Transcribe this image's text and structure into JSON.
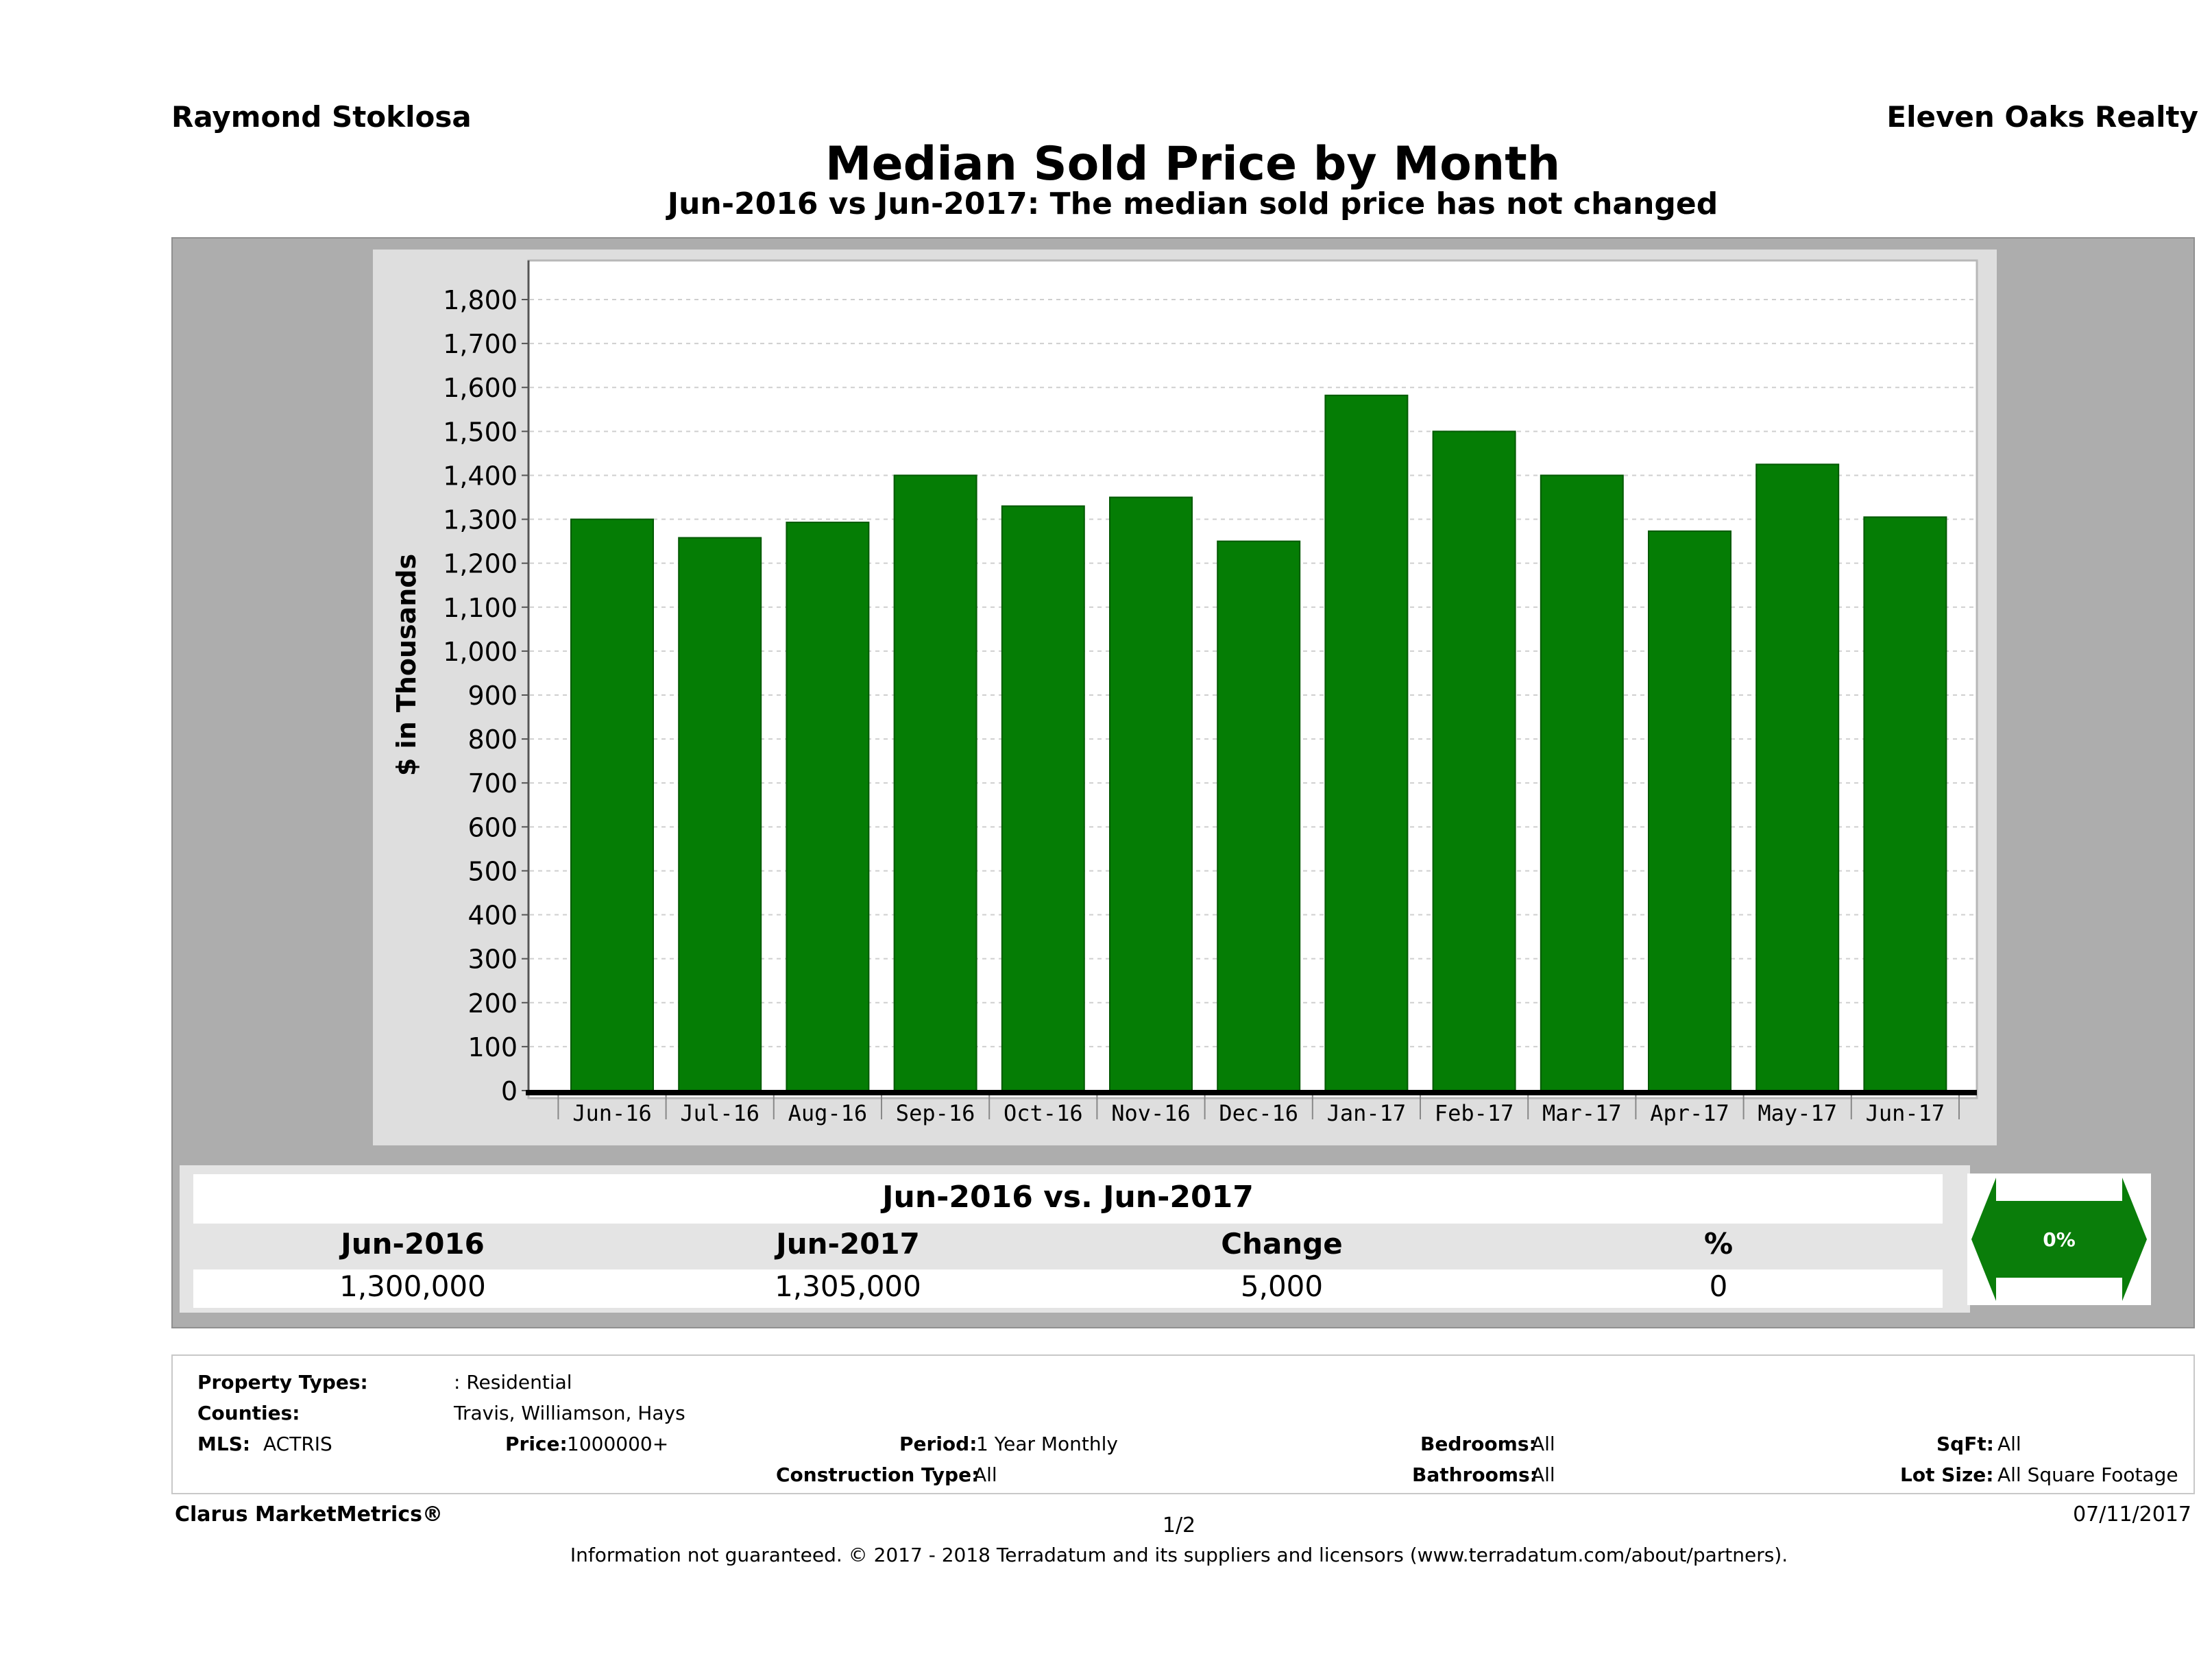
{
  "header": {
    "agent": "Raymond Stoklosa",
    "brokerage": "Eleven Oaks Realty",
    "title": "Median Sold Price by Month",
    "subtitle": "Jun-2016 vs Jun-2017: The median sold price has not changed"
  },
  "chart_data": {
    "type": "bar",
    "ylabel": "$ in Thousands",
    "xlabel": "",
    "ylim": [
      0,
      1800
    ],
    "yticks": [
      0,
      100,
      200,
      300,
      400,
      500,
      600,
      700,
      800,
      900,
      1000,
      1100,
      1200,
      1300,
      1400,
      1500,
      1600,
      1700,
      1800
    ],
    "ytick_labels": [
      "0",
      "100",
      "200",
      "300",
      "400",
      "500",
      "600",
      "700",
      "800",
      "900",
      "1,000",
      "1,100",
      "1,200",
      "1,300",
      "1,400",
      "1,500",
      "1,600",
      "1,700",
      "1,800"
    ],
    "categories": [
      "Jun-16",
      "Jul-16",
      "Aug-16",
      "Sep-16",
      "Oct-16",
      "Nov-16",
      "Dec-16",
      "Jan-17",
      "Feb-17",
      "Mar-17",
      "Apr-17",
      "May-17",
      "Jun-17"
    ],
    "values": [
      1300,
      1258,
      1293,
      1400,
      1330,
      1350,
      1250,
      1582,
      1500,
      1400,
      1273,
      1425,
      1305
    ],
    "grid": true,
    "bar_color": "#057d05"
  },
  "summary": {
    "heading": "Jun-2016 vs. Jun-2017",
    "columns": [
      "Jun-2016",
      "Jun-2017",
      "Change",
      "%"
    ],
    "values": [
      "1,300,000",
      "1,305,000",
      "5,000",
      "0"
    ],
    "indicator": "0%",
    "indicator_color": "#0a7d0a"
  },
  "criteria": {
    "property_types_label": "Property Types:",
    "property_types": ": Residential",
    "counties_label": "Counties:",
    "counties": "Travis, Williamson, Hays",
    "mls_label": "MLS:",
    "mls": "ACTRIS",
    "price_label": "Price:",
    "price": "1000000+",
    "period_label": "Period:",
    "period": "1 Year Monthly",
    "construction_label": "Construction Type:",
    "construction": "All",
    "bedrooms_label": "Bedrooms:",
    "bedrooms": "All",
    "bathrooms_label": "Bathrooms:",
    "bathrooms": "All",
    "sqft_label": "SqFt:",
    "sqft": "All",
    "lot_label": "Lot Size:",
    "lot": "All Square Footage"
  },
  "footer": {
    "brand": "Clarus MarketMetrics®",
    "page": "1/2",
    "date": "07/11/2017",
    "disclaimer": "Information not guaranteed. © 2017 - 2018 Terradatum and its suppliers and licensors (www.terradatum.com/about/partners)."
  }
}
